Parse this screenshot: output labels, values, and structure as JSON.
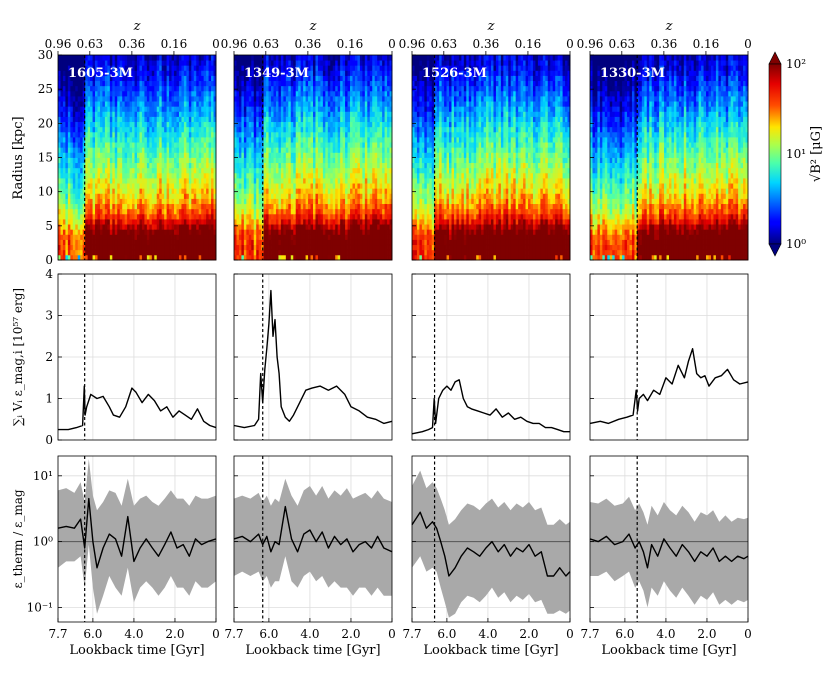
{
  "figure": {
    "top_axis": {
      "label": "z",
      "ticks": [
        "0.96",
        "0.63",
        "0.36",
        "0.16",
        "0"
      ]
    },
    "bottom_axis": {
      "label": "Lookback time [Gyr]",
      "ticks": [
        "7.7",
        "6.0",
        "4.0",
        "2.0",
        "0"
      ]
    },
    "panels": [
      "1605-3M",
      "1349-3M",
      "1526-3M",
      "1330-3M"
    ],
    "colorbar": {
      "label": "√B² [μG]",
      "tick_labels": [
        "10²",
        "10¹",
        "10⁰"
      ],
      "range": [
        1,
        100
      ],
      "scale": "log"
    },
    "row_ylabels": {
      "radius": "Radius [kpc]",
      "energy": "∑ᵢ Vᵢ ε_mag,i [10⁵⁷ erg]",
      "ratio": "ε_therm / ε_mag"
    }
  },
  "chart_data": [
    {
      "type": "heatmap",
      "row": "magnetic field strength map",
      "xlabel": "Lookback time [Gyr]",
      "ylabel": "Radius [kpc]",
      "x_range": [
        7.7,
        0
      ],
      "ylim": [
        0,
        30
      ],
      "yticks": [
        0,
        5,
        10,
        15,
        20,
        25,
        30
      ],
      "color_scale": "log",
      "color_range": [
        1,
        100
      ],
      "panels": [
        {
          "name": "1605-3M",
          "merger_time": 6.4
        },
        {
          "name": "1349-3M",
          "merger_time": 6.3
        },
        {
          "name": "1526-3M",
          "merger_time": 6.6
        },
        {
          "name": "1330-3M",
          "merger_time": 5.4
        }
      ]
    },
    {
      "type": "line",
      "row": "total magnetic energy",
      "xlabel": "Lookback time [Gyr]",
      "ylabel": "∑ᵢ Vᵢ ε_mag,i [10⁵⁷ erg]",
      "x_range": [
        7.7,
        0
      ],
      "ylim": [
        0,
        4
      ],
      "yticks": [
        0,
        1,
        2,
        3,
        4
      ],
      "grid": true,
      "panels": [
        {
          "name": "1605-3M",
          "merger_time": 6.4,
          "x": [
            7.7,
            7.2,
            6.8,
            6.5,
            6.42,
            6.38,
            6.3,
            6.1,
            5.8,
            5.5,
            5.2,
            5.0,
            4.7,
            4.4,
            4.1,
            3.9,
            3.6,
            3.3,
            3.0,
            2.7,
            2.4,
            2.1,
            1.8,
            1.5,
            1.2,
            0.9,
            0.6,
            0.3,
            0.0
          ],
          "y": [
            0.25,
            0.25,
            0.3,
            0.35,
            1.3,
            0.6,
            0.8,
            1.1,
            1.0,
            1.05,
            0.8,
            0.6,
            0.55,
            0.8,
            1.25,
            1.15,
            0.9,
            1.1,
            0.95,
            0.7,
            0.8,
            0.55,
            0.7,
            0.6,
            0.5,
            0.75,
            0.45,
            0.35,
            0.3
          ]
        },
        {
          "name": "1349-3M",
          "merger_time": 6.3,
          "x": [
            7.7,
            7.2,
            6.7,
            6.5,
            6.4,
            6.3,
            6.2,
            6.1,
            6.0,
            5.9,
            5.8,
            5.7,
            5.6,
            5.5,
            5.4,
            5.2,
            5.0,
            4.8,
            4.5,
            4.2,
            3.9,
            3.5,
            3.1,
            2.7,
            2.3,
            2.0,
            1.6,
            1.2,
            0.8,
            0.4,
            0.0
          ],
          "y": [
            0.35,
            0.3,
            0.35,
            0.5,
            1.6,
            0.9,
            1.7,
            2.2,
            2.8,
            3.6,
            2.5,
            2.9,
            2.0,
            1.6,
            0.8,
            0.55,
            0.45,
            0.6,
            0.9,
            1.2,
            1.25,
            1.3,
            1.2,
            1.3,
            1.1,
            0.8,
            0.7,
            0.55,
            0.5,
            0.4,
            0.45
          ]
        },
        {
          "name": "1526-3M",
          "merger_time": 6.6,
          "x": [
            7.7,
            7.2,
            6.9,
            6.7,
            6.62,
            6.55,
            6.4,
            6.2,
            6.0,
            5.8,
            5.6,
            5.4,
            5.2,
            5.0,
            4.8,
            4.5,
            4.2,
            3.9,
            3.6,
            3.3,
            3.0,
            2.7,
            2.4,
            2.1,
            1.8,
            1.5,
            1.2,
            0.9,
            0.6,
            0.3,
            0.0
          ],
          "y": [
            0.15,
            0.2,
            0.25,
            0.3,
            1.0,
            0.4,
            1.0,
            1.2,
            1.3,
            1.2,
            1.4,
            1.45,
            1.0,
            0.8,
            0.75,
            0.7,
            0.65,
            0.6,
            0.75,
            0.55,
            0.65,
            0.5,
            0.55,
            0.45,
            0.4,
            0.4,
            0.3,
            0.3,
            0.25,
            0.2,
            0.2
          ]
        },
        {
          "name": "1330-3M",
          "merger_time": 5.4,
          "x": [
            7.7,
            7.2,
            6.8,
            6.3,
            5.9,
            5.6,
            5.45,
            5.38,
            5.3,
            5.1,
            4.9,
            4.6,
            4.3,
            4.0,
            3.7,
            3.4,
            3.1,
            2.9,
            2.7,
            2.5,
            2.3,
            2.1,
            1.9,
            1.6,
            1.3,
            1.0,
            0.7,
            0.4,
            0.0
          ],
          "y": [
            0.4,
            0.45,
            0.4,
            0.5,
            0.55,
            0.6,
            1.2,
            0.7,
            1.0,
            1.1,
            0.95,
            1.2,
            1.1,
            1.5,
            1.35,
            1.8,
            1.5,
            1.9,
            2.2,
            1.6,
            1.5,
            1.55,
            1.3,
            1.5,
            1.55,
            1.7,
            1.45,
            1.35,
            1.4
          ]
        }
      ]
    },
    {
      "type": "line",
      "row": "thermal to magnetic energy ratio",
      "xlabel": "Lookback time [Gyr]",
      "ylabel": "ε_therm / ε_mag",
      "x_range": [
        7.7,
        0
      ],
      "ylim": [
        0.06,
        20
      ],
      "yscale": "log",
      "yticks": [
        0.1,
        1,
        10
      ],
      "reference_line": 1,
      "shaded_band": true,
      "grid": true,
      "panels": [
        {
          "name": "1605-3M",
          "merger_time": 6.4,
          "x": [
            7.7,
            7.3,
            6.9,
            6.6,
            6.4,
            6.2,
            6.0,
            5.8,
            5.5,
            5.2,
            4.9,
            4.6,
            4.3,
            4.0,
            3.7,
            3.4,
            3.1,
            2.8,
            2.5,
            2.2,
            1.9,
            1.6,
            1.3,
            1.0,
            0.7,
            0.4,
            0.0
          ],
          "y": [
            1.6,
            1.7,
            1.6,
            2.2,
            0.8,
            4.5,
            1.0,
            0.4,
            0.8,
            1.3,
            1.1,
            0.6,
            2.4,
            0.5,
            0.8,
            1.1,
            0.8,
            0.6,
            0.9,
            1.4,
            0.8,
            0.9,
            0.6,
            1.1,
            0.9,
            1.0,
            1.1
          ],
          "band_low": [
            0.4,
            0.5,
            0.5,
            0.6,
            0.2,
            0.9,
            0.2,
            0.08,
            0.15,
            0.3,
            0.2,
            0.15,
            0.4,
            0.12,
            0.2,
            0.25,
            0.2,
            0.15,
            0.2,
            0.3,
            0.2,
            0.2,
            0.15,
            0.25,
            0.2,
            0.2,
            0.25
          ],
          "band_high": [
            6.0,
            6.5,
            5.5,
            8.0,
            4.0,
            18.0,
            5.0,
            3.0,
            4.0,
            6.0,
            5.5,
            3.5,
            9.0,
            3.5,
            4.5,
            5.0,
            4.0,
            3.5,
            4.5,
            6.0,
            4.5,
            4.5,
            3.5,
            5.0,
            4.5,
            4.5,
            5.0
          ]
        },
        {
          "name": "1349-3M",
          "merger_time": 6.3,
          "x": [
            7.7,
            7.3,
            6.9,
            6.5,
            6.3,
            6.1,
            5.9,
            5.7,
            5.5,
            5.2,
            4.9,
            4.6,
            4.3,
            4.0,
            3.7,
            3.4,
            3.1,
            2.8,
            2.5,
            2.2,
            1.9,
            1.6,
            1.3,
            1.0,
            0.7,
            0.4,
            0.0
          ],
          "y": [
            1.1,
            1.2,
            1.0,
            1.3,
            0.9,
            1.2,
            0.7,
            1.0,
            0.9,
            3.4,
            1.1,
            0.7,
            1.3,
            1.5,
            1.0,
            1.4,
            0.8,
            1.2,
            0.9,
            1.1,
            0.7,
            0.9,
            1.0,
            0.8,
            1.2,
            0.8,
            0.7
          ],
          "band_low": [
            0.3,
            0.35,
            0.3,
            0.35,
            0.25,
            0.3,
            0.2,
            0.25,
            0.25,
            0.6,
            0.25,
            0.2,
            0.3,
            0.35,
            0.25,
            0.3,
            0.2,
            0.25,
            0.2,
            0.2,
            0.15,
            0.2,
            0.2,
            0.15,
            0.2,
            0.15,
            0.15
          ],
          "band_high": [
            4.5,
            5.0,
            4.5,
            5.5,
            4.0,
            5.0,
            3.5,
            4.5,
            4.0,
            9.0,
            5.0,
            3.5,
            6.0,
            7.0,
            5.0,
            7.0,
            4.5,
            6.0,
            5.0,
            6.5,
            4.5,
            5.0,
            5.5,
            4.5,
            6.0,
            4.5,
            4.0
          ]
        },
        {
          "name": "1526-3M",
          "merger_time": 6.6,
          "x": [
            7.7,
            7.3,
            7.0,
            6.7,
            6.5,
            6.3,
            6.1,
            5.9,
            5.6,
            5.3,
            5.0,
            4.7,
            4.4,
            4.1,
            3.8,
            3.5,
            3.2,
            2.9,
            2.6,
            2.3,
            2.0,
            1.7,
            1.4,
            1.1,
            0.8,
            0.5,
            0.2,
            0.0
          ],
          "y": [
            1.8,
            2.8,
            1.6,
            2.0,
            1.6,
            1.0,
            0.6,
            0.3,
            0.4,
            0.6,
            0.8,
            0.7,
            0.6,
            0.8,
            1.0,
            0.7,
            0.9,
            0.6,
            0.8,
            0.7,
            0.9,
            0.6,
            0.7,
            0.3,
            0.3,
            0.4,
            0.3,
            0.35
          ],
          "band_low": [
            0.4,
            0.6,
            0.35,
            0.4,
            0.35,
            0.2,
            0.12,
            0.07,
            0.08,
            0.12,
            0.15,
            0.14,
            0.12,
            0.15,
            0.2,
            0.14,
            0.17,
            0.12,
            0.15,
            0.13,
            0.16,
            0.12,
            0.13,
            0.08,
            0.08,
            0.09,
            0.08,
            0.09
          ],
          "band_high": [
            7.0,
            12.0,
            6.5,
            8.0,
            6.5,
            4.5,
            3.0,
            1.8,
            2.2,
            3.0,
            3.8,
            3.5,
            3.0,
            3.8,
            4.5,
            3.3,
            4.0,
            3.0,
            3.8,
            3.3,
            4.0,
            3.0,
            3.3,
            1.8,
            1.8,
            2.2,
            1.8,
            2.0
          ]
        },
        {
          "name": "1330-3M",
          "merger_time": 5.4,
          "x": [
            7.7,
            7.3,
            6.9,
            6.5,
            6.1,
            5.8,
            5.5,
            5.3,
            5.1,
            4.9,
            4.7,
            4.4,
            4.1,
            3.8,
            3.5,
            3.2,
            2.9,
            2.6,
            2.3,
            2.0,
            1.7,
            1.4,
            1.1,
            0.8,
            0.5,
            0.2,
            0.0
          ],
          "y": [
            1.1,
            1.0,
            1.2,
            0.9,
            1.0,
            1.3,
            0.8,
            1.0,
            0.7,
            0.4,
            0.9,
            0.6,
            1.1,
            0.8,
            0.6,
            0.9,
            0.7,
            0.5,
            0.7,
            0.6,
            0.8,
            0.5,
            0.6,
            0.5,
            0.6,
            0.55,
            0.6
          ],
          "band_low": [
            0.3,
            0.3,
            0.35,
            0.25,
            0.3,
            0.35,
            0.2,
            0.25,
            0.18,
            0.1,
            0.2,
            0.15,
            0.25,
            0.18,
            0.14,
            0.2,
            0.15,
            0.11,
            0.15,
            0.13,
            0.17,
            0.11,
            0.13,
            0.11,
            0.13,
            0.12,
            0.13
          ],
          "band_high": [
            4.0,
            3.8,
            4.5,
            3.5,
            3.8,
            4.8,
            3.0,
            3.8,
            2.8,
            1.8,
            3.5,
            2.5,
            4.0,
            3.0,
            2.5,
            3.5,
            2.8,
            2.0,
            2.8,
            2.5,
            3.0,
            2.0,
            2.5,
            2.0,
            2.3,
            2.2,
            2.3
          ]
        }
      ]
    }
  ]
}
